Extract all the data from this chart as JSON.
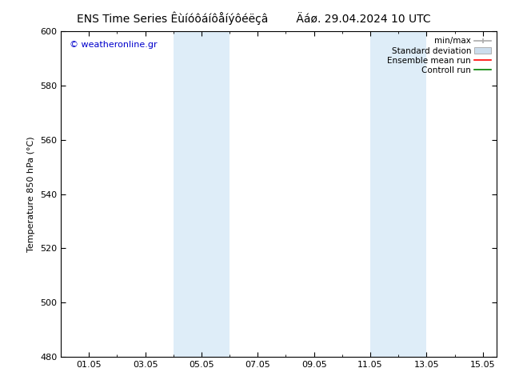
{
  "title_part1": "ENS Time Series Êùíóôáíôåíýôéëçâ",
  "title_part2": "Äáø. 29.04.2024 10 UTC",
  "ylabel": "Temperature 850 hPa (°C)",
  "watermark": "© weatheronline.gr",
  "watermark_color": "#0000cc",
  "ylim": [
    480,
    600
  ],
  "yticks": [
    480,
    500,
    520,
    540,
    560,
    580,
    600
  ],
  "xtick_labels": [
    "01.05",
    "03.05",
    "05.05",
    "07.05",
    "09.05",
    "11.05",
    "13.05",
    "15.05"
  ],
  "xtick_positions": [
    1,
    3,
    5,
    7,
    9,
    11,
    13,
    15
  ],
  "xmin": 0.0,
  "xmax": 15.5,
  "bg_color": "#ffffff",
  "plot_bg_color": "#ffffff",
  "shaded_bands": [
    {
      "x_start": 4.0,
      "x_end": 5.0,
      "color": "#deedf8"
    },
    {
      "x_start": 5.0,
      "x_end": 6.0,
      "color": "#deedf8"
    },
    {
      "x_start": 11.0,
      "x_end": 12.0,
      "color": "#deedf8"
    },
    {
      "x_start": 12.0,
      "x_end": 13.0,
      "color": "#deedf8"
    }
  ],
  "legend_entries": [
    {
      "label": "min/max",
      "color": "#aaaaaa",
      "type": "line_with_cap"
    },
    {
      "label": "Standard deviation",
      "color": "#ccdded",
      "type": "filled_box"
    },
    {
      "label": "Ensemble mean run",
      "color": "#ff0000",
      "type": "line"
    },
    {
      "label": "Controll run",
      "color": "#008000",
      "type": "line"
    }
  ],
  "tick_color": "#000000",
  "axis_color": "#000000",
  "font_size_title": 10,
  "font_size_axis": 8,
  "font_size_ticks": 8,
  "font_size_legend": 7.5,
  "font_size_watermark": 8
}
